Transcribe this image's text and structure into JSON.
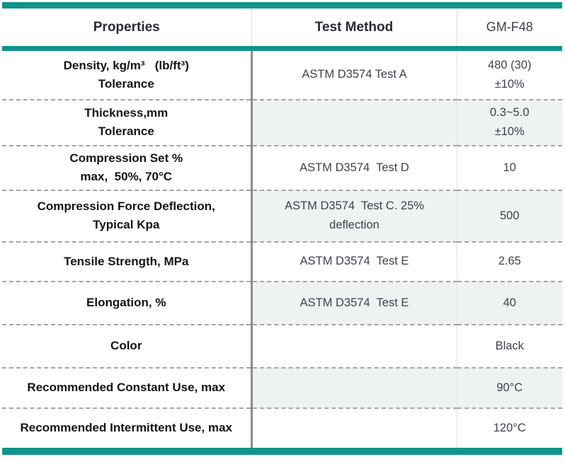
{
  "header": {
    "properties_label": "Properties",
    "test_method_label": "Test Method",
    "product_label": "GM-F48"
  },
  "rows": [
    {
      "p1": "Density, kg/m³   (lb/ft³)",
      "p2": "Tolerance",
      "t1": "ASTM D3574 Test A",
      "v1": "480 (30)",
      "v2": "±10%"
    },
    {
      "p1": "Thickness,mm",
      "p2": "Tolerance",
      "v1": "0.3~5.0",
      "v2": "±10%"
    },
    {
      "p1": "Compression Set %",
      "p2": "max,  50%, 70°C",
      "t1": "ASTM D3574  Test D",
      "v1": "10"
    },
    {
      "p1": "Compression Force Deflection,",
      "p2": "Typical Kpa",
      "t1": "ASTM D3574  Test C. 25%",
      "t2": "deflection",
      "v1": "500"
    },
    {
      "p1": "Tensile Strength, MPa",
      "t1": "ASTM D3574  Test E",
      "v1": "2.65"
    },
    {
      "p1": "Elongation, %",
      "t1": "ASTM D3574  Test E",
      "v1": "40"
    },
    {
      "p1": "Color",
      "v1": "Black"
    },
    {
      "p1": "Recommended Constant Use, max",
      "v1": "90°C"
    },
    {
      "p1": "Recommended Intermittent Use, max",
      "v1": "120°C"
    }
  ],
  "colors": {
    "accent_teal": "#0f948a",
    "row_tint": "#edf3f1",
    "divider_dark": "#8c8c8c",
    "dash_gray": "#a4a4a4"
  }
}
